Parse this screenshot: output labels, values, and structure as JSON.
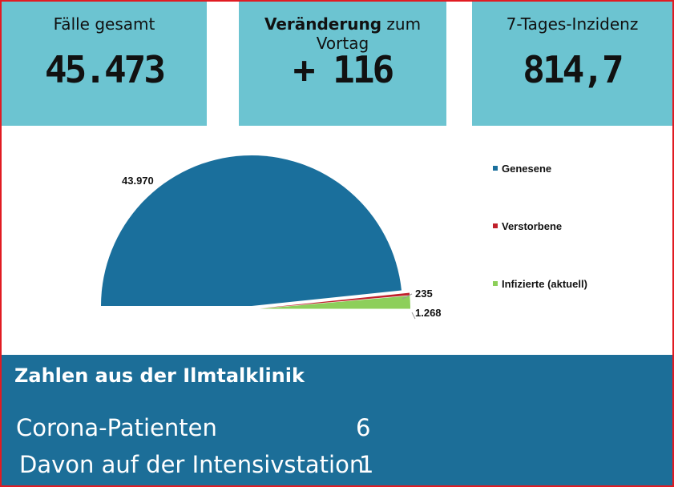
{
  "colors": {
    "border": "#e11b22",
    "card": "#6cc4d1",
    "clinic_bg": "#1c6e98",
    "genesene": "#1a6f9c",
    "verstorbene": "#c0202b",
    "infizierte": "#8dcf5a"
  },
  "cards": [
    {
      "label_bold": "",
      "label": "Fälle gesamt",
      "value": "45.473"
    },
    {
      "label_bold": "Veränderung",
      "label": " zum Vortag",
      "value": "+ 116"
    },
    {
      "label_bold": "",
      "label": "7-Tages-Inzidenz",
      "value": "814,7"
    }
  ],
  "chart_data": {
    "type": "pie",
    "style": "half-pie",
    "legend_position": "right",
    "slices": [
      {
        "label": "Genesene",
        "value": 43970,
        "value_label": "43.970",
        "color": "#1a6f9c"
      },
      {
        "label": "Verstorbene",
        "value": 235,
        "value_label": "235",
        "color": "#c0202b"
      },
      {
        "label": "Infizierte (aktuell)",
        "value": 1268,
        "value_label": "1.268",
        "color": "#8dcf5a"
      }
    ]
  },
  "clinic": {
    "title": "Zahlen aus der Ilmtalklinik",
    "rows": [
      {
        "label": "Corona-Patienten",
        "value": "6"
      },
      {
        "label": "Davon auf der Intensivstation",
        "value": "1"
      }
    ]
  }
}
